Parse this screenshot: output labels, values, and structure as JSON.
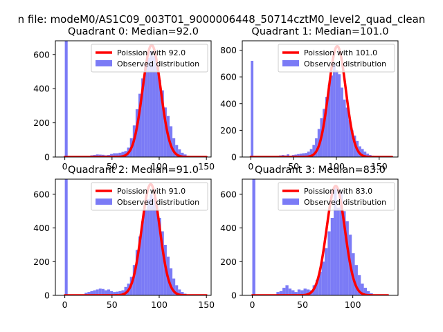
{
  "figure": {
    "suptitle": "n file: modeM0/AS1C09_003T01_9000006448_50714cztM0_level2_quad_clean"
  },
  "chart_data": [
    {
      "type": "bar",
      "title": "Quadrant 0: Median=92.0",
      "xlim": [
        -10,
        155
      ],
      "ylim": [
        0,
        680
      ],
      "xticks": [
        0,
        50,
        100,
        150
      ],
      "yticks": [
        0,
        200,
        400,
        600
      ],
      "legend": [
        "Poission with 92.0",
        "Observed distribution"
      ],
      "legend_position": "upper right",
      "poisson_mean": 92.0,
      "poisson_peak": 655,
      "poisson_xmax": 150,
      "hist_color": "#7b7bf6",
      "line_color": "#ff0000",
      "bin_width": 3,
      "hist_x": [
        0,
        27,
        30,
        33,
        36,
        39,
        42,
        45,
        48,
        51,
        54,
        57,
        60,
        63,
        66,
        69,
        72,
        75,
        78,
        81,
        84,
        87,
        90,
        93,
        96,
        99,
        102,
        105,
        108,
        111,
        114,
        117,
        120,
        123,
        126,
        129,
        132
      ],
      "hist_y": [
        680,
        10,
        12,
        15,
        14,
        13,
        10,
        12,
        18,
        22,
        22,
        25,
        30,
        35,
        55,
        110,
        185,
        280,
        370,
        460,
        540,
        580,
        620,
        590,
        540,
        450,
        390,
        290,
        240,
        180,
        110,
        70,
        45,
        25,
        15,
        8,
        4
      ]
    },
    {
      "type": "bar",
      "title": "Quadrant 1: Median=101.0",
      "xlim": [
        -10,
        172
      ],
      "ylim": [
        0,
        870
      ],
      "xticks": [
        0,
        50,
        100,
        150
      ],
      "yticks": [
        0,
        200,
        400,
        600,
        800
      ],
      "legend": [
        "Poission with 101.0",
        "Observed distribution"
      ],
      "legend_position": "upper right",
      "poisson_mean": 101.0,
      "poisson_peak": 830,
      "poisson_xmax": 165,
      "hist_color": "#7b7bf6",
      "line_color": "#ff0000",
      "bin_width": 3,
      "hist_x": [
        0,
        30,
        33,
        36,
        39,
        42,
        45,
        48,
        51,
        54,
        57,
        60,
        63,
        66,
        69,
        72,
        75,
        78,
        81,
        84,
        87,
        90,
        93,
        96,
        99,
        102,
        105,
        108,
        111,
        114,
        117,
        120,
        123,
        126,
        129,
        132,
        135,
        138,
        141,
        144
      ],
      "hist_y": [
        720,
        8,
        12,
        15,
        12,
        20,
        10,
        15,
        18,
        22,
        25,
        28,
        30,
        40,
        60,
        90,
        140,
        210,
        290,
        360,
        450,
        540,
        610,
        700,
        650,
        620,
        520,
        430,
        370,
        280,
        200,
        160,
        120,
        80,
        60,
        40,
        25,
        15,
        10,
        5
      ]
    },
    {
      "type": "bar",
      "title": "Quadrant 2: Median=91.0",
      "xlim": [
        -10,
        155
      ],
      "ylim": [
        0,
        690
      ],
      "xticks": [
        0,
        50,
        100,
        150
      ],
      "yticks": [
        0,
        200,
        400,
        600
      ],
      "legend": [
        "Poission with 91.0",
        "Observed distribution"
      ],
      "legend_position": "upper right",
      "poisson_mean": 91.0,
      "poisson_peak": 660,
      "poisson_xmax": 150,
      "hist_color": "#7b7bf6",
      "line_color": "#ff0000",
      "bin_width": 3,
      "hist_x": [
        0,
        21,
        24,
        27,
        30,
        33,
        36,
        39,
        42,
        45,
        48,
        51,
        54,
        57,
        60,
        63,
        66,
        69,
        72,
        75,
        78,
        81,
        84,
        87,
        90,
        93,
        96,
        99,
        102,
        105,
        108,
        111,
        114,
        117,
        120,
        123,
        126
      ],
      "hist_y": [
        690,
        15,
        20,
        25,
        30,
        35,
        40,
        38,
        30,
        35,
        25,
        20,
        22,
        25,
        30,
        50,
        70,
        110,
        180,
        270,
        350,
        440,
        510,
        570,
        600,
        580,
        530,
        460,
        380,
        300,
        230,
        160,
        100,
        60,
        35,
        20,
        10
      ]
    },
    {
      "type": "bar",
      "title": "Quadrant 3: Median=83.0",
      "xlim": [
        -10,
        145
      ],
      "ylim": [
        0,
        690
      ],
      "xticks": [
        0,
        50,
        100
      ],
      "yticks": [
        0,
        200,
        400,
        600
      ],
      "legend": [
        "Poission with 83.0",
        "Observed distribution"
      ],
      "legend_position": "upper right",
      "poisson_mean": 83.0,
      "poisson_peak": 650,
      "poisson_xmax": 135,
      "hist_color": "#7b7bf6",
      "line_color": "#ff0000",
      "bin_width": 3,
      "hist_x": [
        0,
        24,
        27,
        30,
        33,
        36,
        39,
        42,
        45,
        48,
        51,
        54,
        57,
        60,
        63,
        66,
        69,
        72,
        75,
        78,
        81,
        84,
        87,
        90,
        93,
        96,
        99,
        102,
        105,
        108,
        111,
        114,
        117,
        120
      ],
      "hist_y": [
        690,
        20,
        25,
        45,
        60,
        40,
        30,
        20,
        35,
        30,
        40,
        35,
        30,
        60,
        90,
        140,
        200,
        280,
        380,
        460,
        640,
        520,
        620,
        500,
        440,
        360,
        250,
        180,
        120,
        70,
        45,
        25,
        12,
        6
      ]
    }
  ]
}
